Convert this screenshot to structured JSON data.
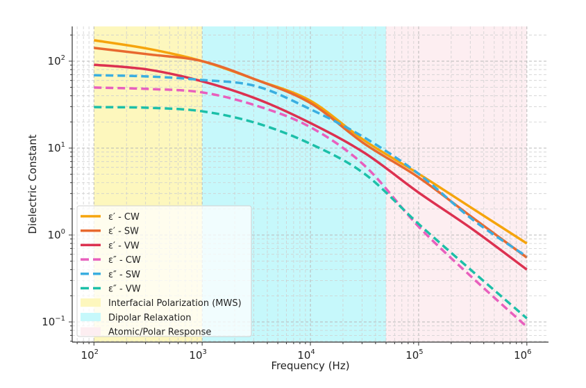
{
  "chart_data": {
    "type": "line",
    "title": "",
    "xlabel": "Frequency (Hz)",
    "ylabel": "Dielectric Constant",
    "xscale": "log",
    "yscale": "log",
    "xlim": [
      63,
      1585000
    ],
    "ylim": [
      0.0586,
      251
    ],
    "grid": true,
    "legend_position": "lower-left",
    "x_ticks": [
      {
        "value": 100,
        "base": "10",
        "exp": "2"
      },
      {
        "value": 1000,
        "base": "10",
        "exp": "3"
      },
      {
        "value": 10000,
        "base": "10",
        "exp": "4"
      },
      {
        "value": 100000,
        "base": "10",
        "exp": "5"
      },
      {
        "value": 1000000,
        "base": "10",
        "exp": "6"
      }
    ],
    "y_ticks": [
      {
        "value": 0.1,
        "base": "10",
        "exp": "−1"
      },
      {
        "value": 1,
        "base": "10",
        "exp": "0"
      },
      {
        "value": 10,
        "base": "10",
        "exp": "1"
      },
      {
        "value": 100,
        "base": "10",
        "exp": "2"
      }
    ],
    "x": [
      100,
      316,
      1000,
      3162,
      10000,
      31623,
      100000,
      316228,
      1000000
    ],
    "series": [
      {
        "name": "ε′ - CW",
        "color": "#f5a40c",
        "dash": false,
        "values": [
          174,
          139,
          100,
          61,
          35,
          12.2,
          5.06,
          2.01,
          0.8
        ]
      },
      {
        "name": "ε′ - SW",
        "color": "#e8692f",
        "dash": false,
        "values": [
          142,
          120,
          100,
          61,
          33,
          11.2,
          4.6,
          1.58,
          0.55
        ]
      },
      {
        "name": "ε′ - VW",
        "color": "#dc3150",
        "dash": false,
        "values": [
          91,
          80,
          58.6,
          37,
          19.4,
          8.8,
          3.08,
          1.16,
          0.4
        ]
      },
      {
        "name": "ε″ - CW",
        "color": "#e85fbd",
        "dash": true,
        "values": [
          49.7,
          47.9,
          43.7,
          30.8,
          17.4,
          6.3,
          1.25,
          0.32,
          0.088
        ]
      },
      {
        "name": "ε″ - SW",
        "color": "#3aaee0",
        "dash": true,
        "values": [
          69,
          66.7,
          60.8,
          51.5,
          28,
          13.2,
          5.06,
          1.5,
          0.565
        ]
      },
      {
        "name": "ε″ - VW",
        "color": "#1cbfa8",
        "dash": true,
        "values": [
          29.6,
          29.1,
          26.5,
          19.4,
          11.2,
          5.06,
          1.34,
          0.38,
          0.11
        ]
      }
    ],
    "regions": [
      {
        "name": "Interfacial Polarization (MWS)",
        "from": 100,
        "to": 1000,
        "color": "#fdf7bd"
      },
      {
        "name": "Dipolar Relaxation",
        "from": 1000,
        "to": 50000,
        "color": "#c6f8fb"
      },
      {
        "name": "Atomic/Polar Response",
        "from": 50000,
        "to": 1000000,
        "color": "#fdeef1"
      }
    ]
  }
}
